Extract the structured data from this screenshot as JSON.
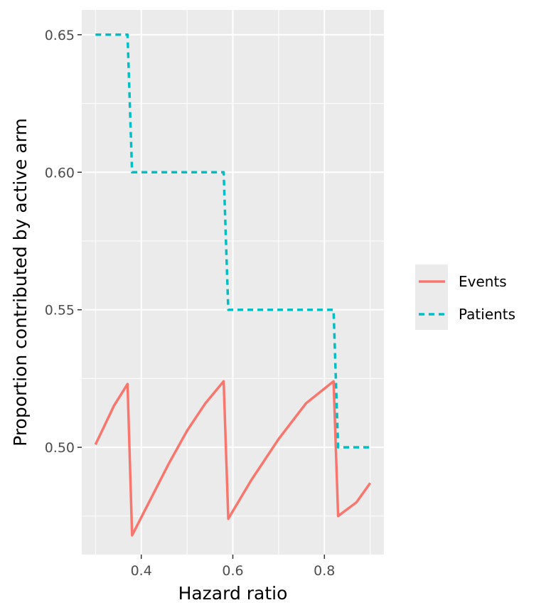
{
  "chart_data": {
    "type": "line",
    "xlabel": "Hazard ratio",
    "ylabel": "Proportion contributed by active arm",
    "xlim": [
      0.27,
      0.93
    ],
    "ylim": [
      0.461,
      0.659
    ],
    "x_ticks": [
      0.4,
      0.6,
      0.8
    ],
    "x_tick_labels": [
      "0.4",
      "0.6",
      "0.8"
    ],
    "y_ticks": [
      0.5,
      0.55,
      0.6,
      0.65
    ],
    "y_tick_labels": [
      "0.50",
      "0.55",
      "0.60",
      "0.65"
    ],
    "x_minor": [
      0.3,
      0.5,
      0.7,
      0.9
    ],
    "y_minor": [
      0.475,
      0.525,
      0.575,
      0.625
    ],
    "grid": true,
    "legend_position": "right",
    "panel_background": "#ebebeb",
    "series": [
      {
        "name": "Events",
        "color": "#F8766D",
        "style": "solid",
        "x": [
          0.3,
          0.32,
          0.34,
          0.37,
          0.38,
          0.42,
          0.46,
          0.5,
          0.54,
          0.58,
          0.59,
          0.64,
          0.7,
          0.76,
          0.82,
          0.83,
          0.87,
          0.9
        ],
        "y": [
          0.501,
          0.508,
          0.515,
          0.523,
          0.468,
          0.481,
          0.494,
          0.506,
          0.516,
          0.524,
          0.474,
          0.488,
          0.503,
          0.516,
          0.524,
          0.475,
          0.48,
          0.487
        ]
      },
      {
        "name": "Patients",
        "color": "#00BFC4",
        "style": "dashed",
        "x": [
          0.3,
          0.37,
          0.38,
          0.58,
          0.59,
          0.82,
          0.83,
          0.9
        ],
        "y": [
          0.65,
          0.65,
          0.6,
          0.6,
          0.55,
          0.55,
          0.5,
          0.5
        ]
      }
    ]
  }
}
